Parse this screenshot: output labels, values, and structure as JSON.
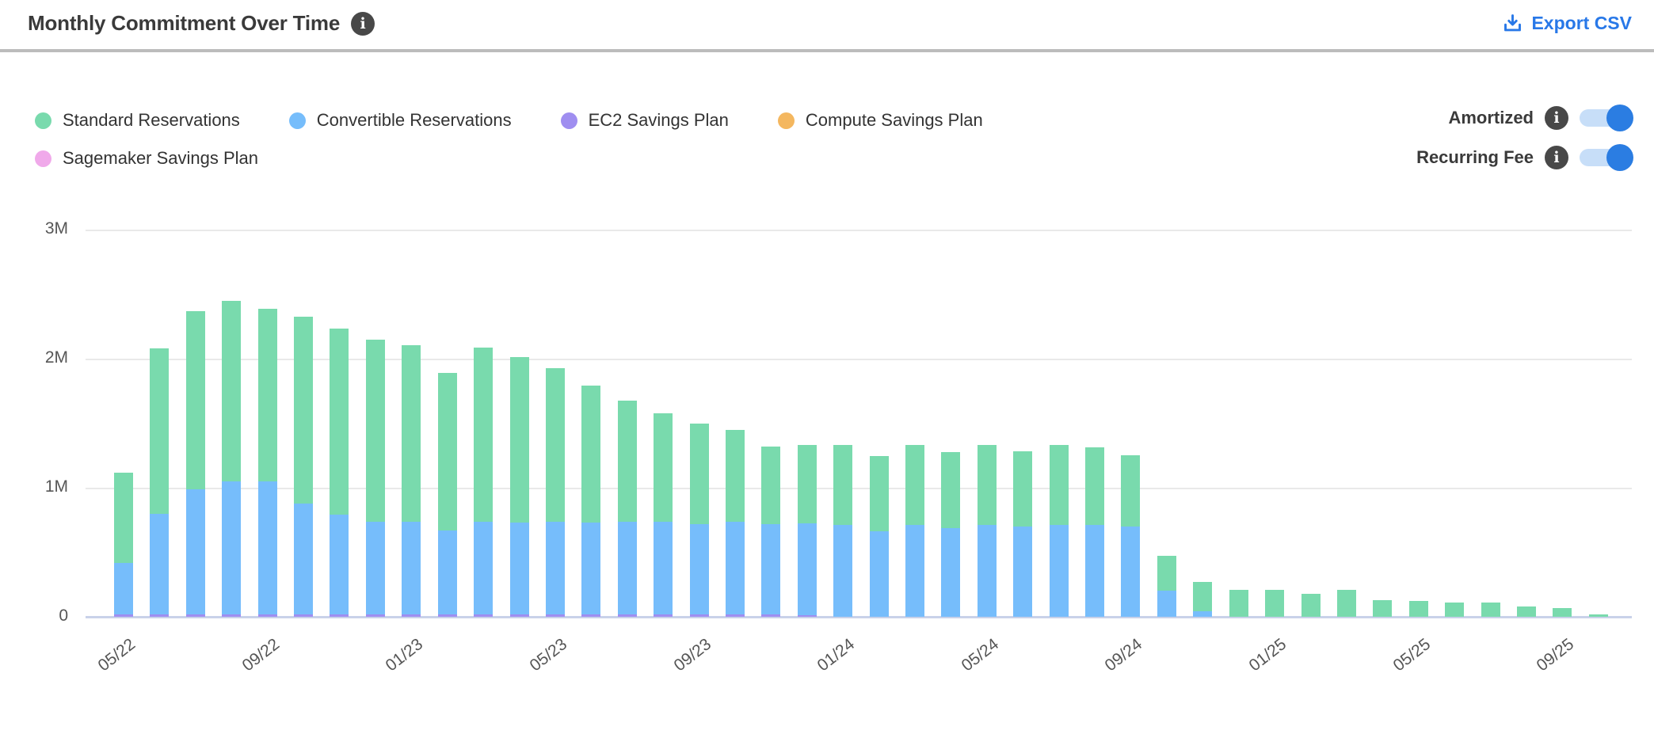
{
  "header": {
    "title": "Monthly Commitment Over Time",
    "info_icon": "info-circle",
    "export_label": "Export CSV",
    "export_icon": "download-icon",
    "export_color": "#2878e8"
  },
  "controls": {
    "toggles": [
      {
        "label": "Amortized",
        "state": "on"
      },
      {
        "label": "Recurring Fee",
        "state": "on"
      }
    ],
    "toggle_on_color": "#2b7de2",
    "toggle_track_color": "#c7def8"
  },
  "chart_data": {
    "type": "bar",
    "stacked": true,
    "title": "Monthly Commitment Over Time",
    "xlabel": "",
    "ylabel": "",
    "unit": "M",
    "ylim": [
      0,
      3000000
    ],
    "y_tick_labels": [
      "0",
      "1M",
      "2M",
      "3M"
    ],
    "grid": true,
    "legend_position": "top-left",
    "legend": [
      {
        "name": "Standard Reservations",
        "color": "#79daad"
      },
      {
        "name": "Convertible Reservations",
        "color": "#76bdfb"
      },
      {
        "name": "EC2 Savings Plan",
        "color": "#9f8ef0"
      },
      {
        "name": "Compute Savings Plan",
        "color": "#f4b75f"
      },
      {
        "name": "Sagemaker Savings Plan",
        "color": "#f0a9ea"
      }
    ],
    "categories": [
      "05/22",
      "06/22",
      "07/22",
      "08/22",
      "09/22",
      "10/22",
      "11/22",
      "12/22",
      "01/23",
      "02/23",
      "03/23",
      "04/23",
      "05/23",
      "06/23",
      "07/23",
      "08/23",
      "09/23",
      "10/23",
      "11/23",
      "12/23",
      "01/24",
      "02/24",
      "03/24",
      "04/24",
      "05/24",
      "06/24",
      "07/24",
      "08/24",
      "09/24",
      "10/24",
      "11/24",
      "12/24",
      "01/25",
      "02/25",
      "03/25",
      "04/25",
      "05/25",
      "06/25",
      "07/25",
      "08/25",
      "09/25",
      "10/25"
    ],
    "x_tick_labels_shown": [
      "05/22",
      "09/22",
      "01/23",
      "05/23",
      "09/23",
      "01/24",
      "05/24",
      "09/24",
      "01/25",
      "05/25",
      "09/25"
    ],
    "values_unit": "millions",
    "series": [
      {
        "name": "Standard Reservations",
        "color": "#79daad",
        "values": [
          0.7,
          1.28,
          1.38,
          1.4,
          1.34,
          1.45,
          1.44,
          1.41,
          1.37,
          1.22,
          1.35,
          1.28,
          1.19,
          1.06,
          0.94,
          0.84,
          0.78,
          0.71,
          0.6,
          0.61,
          0.62,
          0.58,
          0.62,
          0.59,
          0.62,
          0.58,
          0.62,
          0.6,
          0.55,
          0.27,
          0.23,
          0.21,
          0.21,
          0.18,
          0.21,
          0.13,
          0.12,
          0.11,
          0.11,
          0.08,
          0.07,
          0.02
        ]
      },
      {
        "name": "Convertible Reservations",
        "color": "#76bdfb",
        "values": [
          0.4,
          0.78,
          0.97,
          1.03,
          1.03,
          0.86,
          0.77,
          0.72,
          0.72,
          0.65,
          0.72,
          0.71,
          0.72,
          0.71,
          0.72,
          0.72,
          0.7,
          0.72,
          0.7,
          0.71,
          0.71,
          0.66,
          0.71,
          0.69,
          0.71,
          0.7,
          0.71,
          0.71,
          0.7,
          0.2,
          0.04,
          0,
          0,
          0,
          0,
          0,
          0,
          0,
          0,
          0,
          0,
          0
        ]
      },
      {
        "name": "EC2 Savings Plan",
        "color": "#9f8ef0",
        "values": [
          0.02,
          0.02,
          0.02,
          0.02,
          0.02,
          0.02,
          0.02,
          0.02,
          0.02,
          0.02,
          0.02,
          0.02,
          0.02,
          0.02,
          0.02,
          0.02,
          0.02,
          0.02,
          0.02,
          0.01,
          0,
          0,
          0,
          0,
          0,
          0,
          0,
          0,
          0,
          0,
          0,
          0,
          0,
          0,
          0,
          0,
          0,
          0,
          0,
          0,
          0,
          0
        ]
      },
      {
        "name": "Compute Savings Plan",
        "color": "#f4b75f",
        "values": [
          0,
          0,
          0,
          0,
          0,
          0,
          0,
          0,
          0,
          0,
          0,
          0,
          0,
          0,
          0,
          0,
          0,
          0,
          0,
          0,
          0,
          0,
          0,
          0,
          0,
          0,
          0,
          0,
          0,
          0,
          0,
          0,
          0,
          0,
          0,
          0,
          0,
          0,
          0,
          0,
          0,
          0
        ]
      },
      {
        "name": "Sagemaker Savings Plan",
        "color": "#f0a9ea",
        "values": [
          0,
          0,
          0,
          0,
          0,
          0,
          0,
          0,
          0,
          0,
          0,
          0,
          0,
          0,
          0,
          0,
          0,
          0,
          0,
          0,
          0,
          0,
          0,
          0,
          0,
          0,
          0,
          0,
          0,
          0,
          0,
          0,
          0,
          0,
          0,
          0,
          0,
          0,
          0,
          0,
          0,
          0
        ]
      }
    ],
    "stack_order_bottom_to_top": [
      "EC2 Savings Plan",
      "Convertible Reservations",
      "Standard Reservations",
      "Compute Savings Plan",
      "Sagemaker Savings Plan"
    ]
  }
}
